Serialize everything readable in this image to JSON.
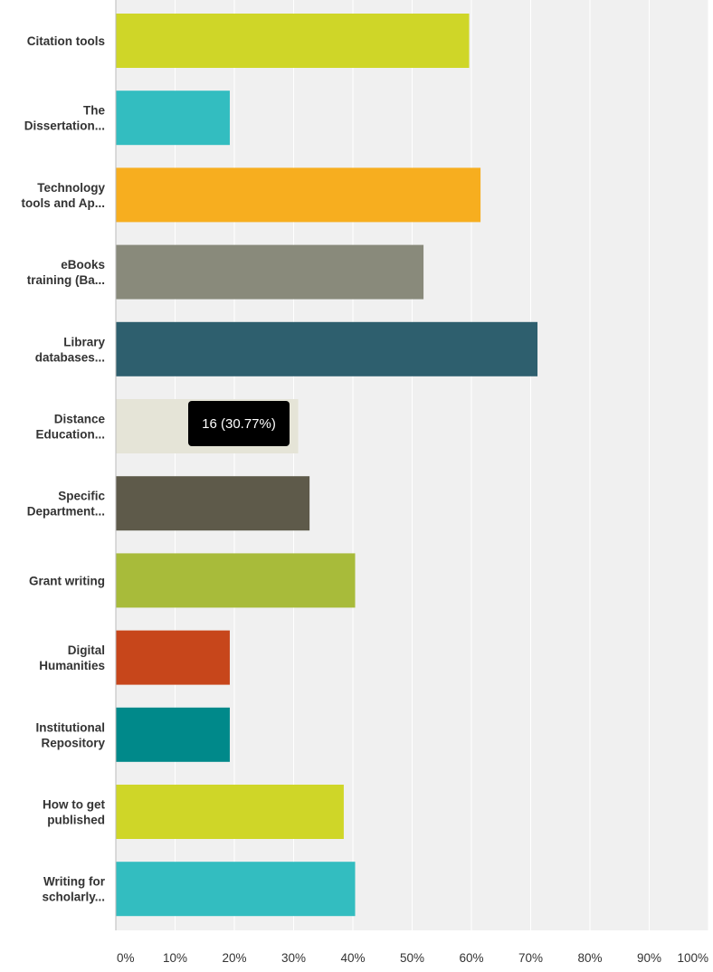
{
  "chart_data": {
    "type": "bar",
    "orientation": "horizontal",
    "categories": [
      [
        "Citation tools"
      ],
      [
        "The",
        "Dissertation..."
      ],
      [
        "Technology",
        "tools and Ap..."
      ],
      [
        "eBooks",
        "training (Ba..."
      ],
      [
        "Library",
        "databases..."
      ],
      [
        "Distance",
        "Education..."
      ],
      [
        "Specific",
        "Department..."
      ],
      [
        "Grant writing"
      ],
      [
        "Digital",
        "Humanities"
      ],
      [
        "Institutional",
        "Repository"
      ],
      [
        "How to get",
        "published"
      ],
      [
        "Writing for",
        "scholarly..."
      ]
    ],
    "values": [
      59.62,
      19.23,
      61.54,
      51.92,
      71.15,
      30.77,
      32.69,
      40.38,
      19.23,
      19.23,
      38.46,
      40.38
    ],
    "colors": [
      "#cfd628",
      "#33bdc0",
      "#f7ae1f",
      "#898a7b",
      "#2e5f6e",
      "#e5e4d7",
      "#5e5a4a",
      "#a8bb3a",
      "#c7461b",
      "#00898a",
      "#cfd628",
      "#33bdc0"
    ],
    "xlim": [
      0,
      100
    ],
    "ticks": [
      "0%",
      "10%",
      "20%",
      "30%",
      "40%",
      "50%",
      "60%",
      "70%",
      "80%",
      "90%",
      "100%"
    ],
    "grid": true,
    "plot_background": "#f0f0f0",
    "tooltip": {
      "category_index": 5,
      "text": "16 (30.77%)"
    }
  }
}
